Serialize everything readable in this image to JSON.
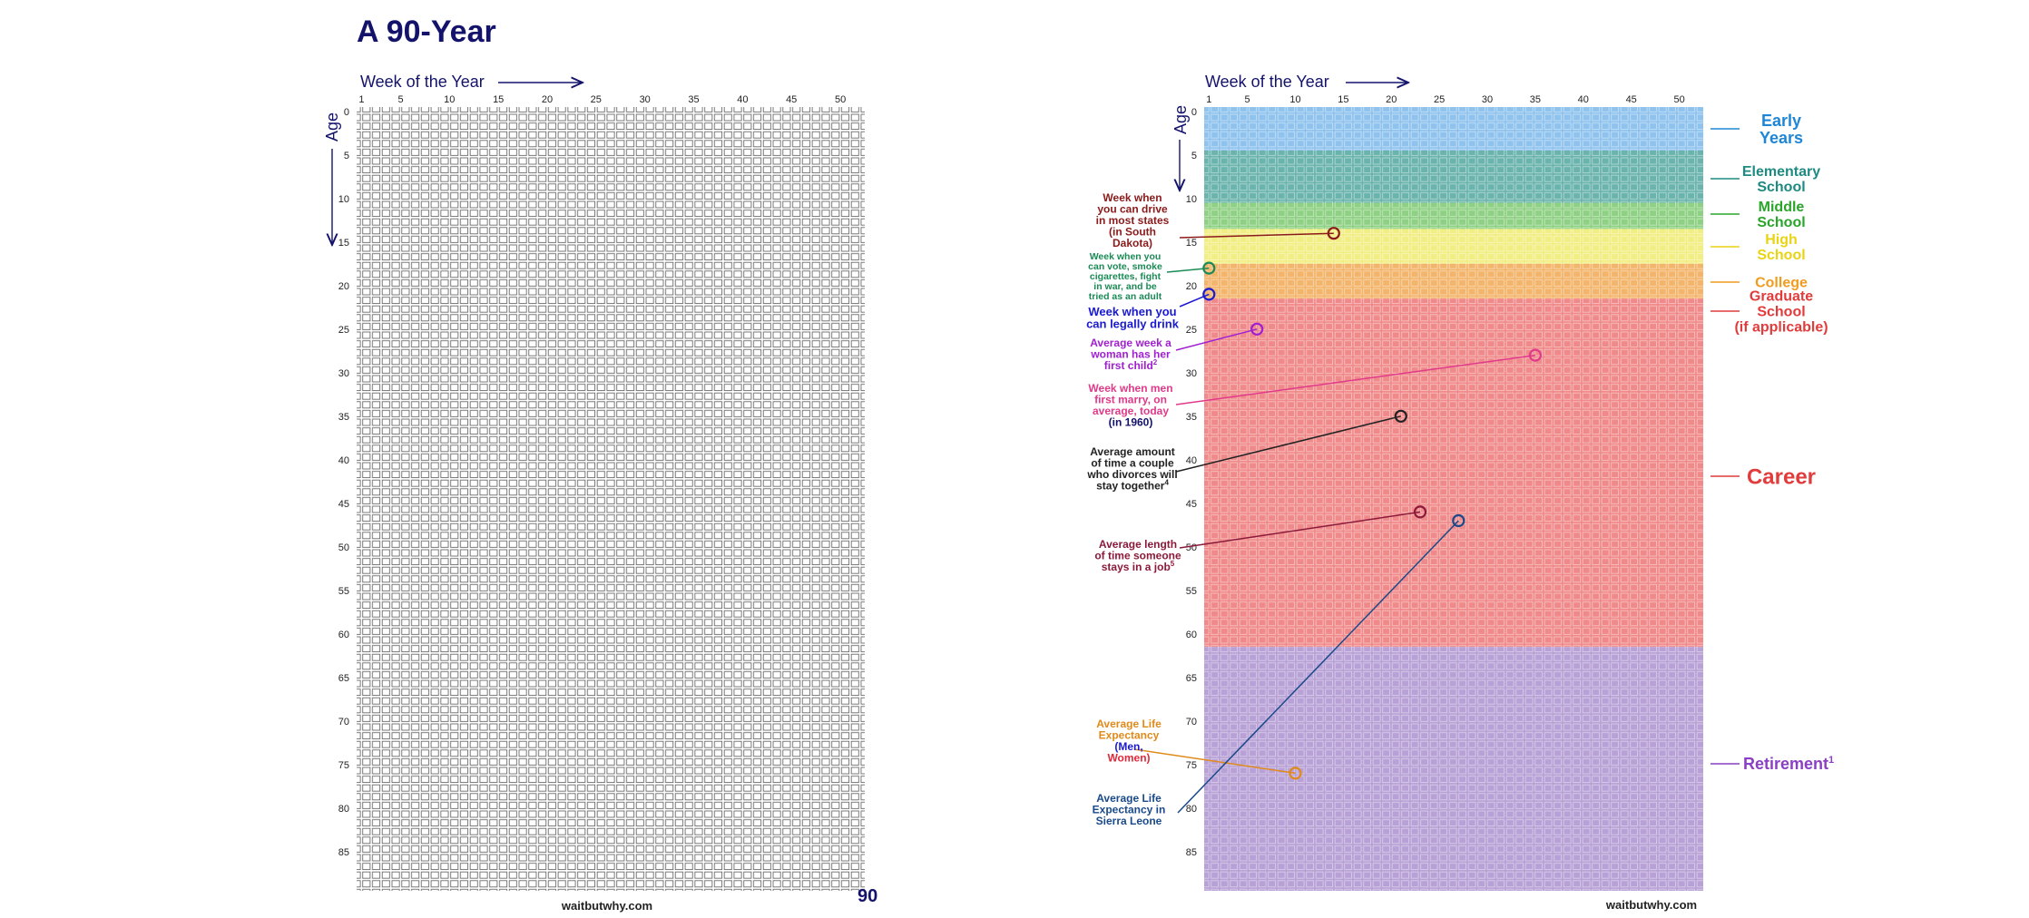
{
  "left_chart": {
    "title": "A 90-Year",
    "week_axis_label": "Week of the Year",
    "age_axis_label": "Age",
    "page_number": "90",
    "footer": "waitbutwhy.com"
  },
  "right_chart": {
    "week_axis_label": "Week of the Year",
    "age_axis_label": "Age",
    "footer": "waitbutwhy.com"
  },
  "axes": {
    "week_ticks": [
      "1",
      "5",
      "10",
      "15",
      "20",
      "25",
      "30",
      "35",
      "40",
      "45",
      "50"
    ],
    "age_ticks": [
      "0",
      "5",
      "10",
      "15",
      "20",
      "25",
      "30",
      "35",
      "40",
      "45",
      "50",
      "55",
      "60",
      "65",
      "70",
      "75",
      "80",
      "85"
    ],
    "weeks": 52,
    "years": 90
  },
  "life_stages": [
    {
      "id": "early",
      "label": [
        "Early",
        "Years"
      ],
      "from": 0,
      "to": 5,
      "color": "#1f86d6",
      "fill": "#8fc3ee"
    },
    {
      "id": "elementary",
      "label": [
        "Elementary",
        "School"
      ],
      "from": 5,
      "to": 11,
      "color": "#1e8a82",
      "fill": "#6bb4ad"
    },
    {
      "id": "middle",
      "label": [
        "Middle",
        "School"
      ],
      "from": 11,
      "to": 14,
      "color": "#2aa52a",
      "fill": "#8fd184"
    },
    {
      "id": "high",
      "label": [
        "High",
        "School"
      ],
      "from": 14,
      "to": 18,
      "color": "#e9d414",
      "fill": "#f1ee83"
    },
    {
      "id": "college",
      "label": [
        "College"
      ],
      "from": 18,
      "to": 22,
      "color": "#ef9c1f",
      "fill": "#f3b56b"
    },
    {
      "id": "graduate",
      "label": [
        "Graduate",
        "School",
        "(if applicable)"
      ],
      "from": 22,
      "to": 24,
      "color": "#e23b3b",
      "fill": "#f08a8a"
    },
    {
      "id": "career",
      "label": [
        "Career"
      ],
      "from": 24,
      "to": 62,
      "color": "#e23b3b",
      "fill": "#f08a8a"
    },
    {
      "id": "retirement",
      "label": [
        "Retirement",
        "1"
      ],
      "from": 62,
      "to": 90,
      "color": "#8a3fc4",
      "fill": "#b8a1d6"
    }
  ],
  "annotations": [
    {
      "id": "drive",
      "lines": [
        "Week when",
        "you can drive",
        "in most states",
        "(in South",
        "Dakota)"
      ],
      "color": "#8b1a1a",
      "week": 14,
      "age": 14
    },
    {
      "id": "vote",
      "lines": [
        "Week when you",
        "can vote, smoke",
        "cigarettes, fight",
        "in war, and be",
        "tried as an adult"
      ],
      "color": "#1b8a55",
      "week": 1,
      "age": 18
    },
    {
      "id": "drink",
      "lines": [
        "Week when you",
        "can legally drink"
      ],
      "color": "#1a1ad1",
      "week": 1,
      "age": 21
    },
    {
      "id": "first-child",
      "lines": [
        "Average week a",
        "woman has her",
        "first child",
        "2"
      ],
      "color": "#a020d0",
      "week": 6,
      "age": 25
    },
    {
      "id": "marry",
      "lines": [
        "Week when men",
        "first marry, on",
        "average, today",
        "(in 1960)"
      ],
      "color": "#e03a8a",
      "week": 35,
      "age": 28
    },
    {
      "id": "divorce",
      "lines": [
        "Average amount",
        "of time a couple",
        "who divorces will",
        "stay together",
        "4"
      ],
      "color": "#222222",
      "week": 21,
      "age": 35
    },
    {
      "id": "job",
      "lines": [
        "Average length",
        "of time someone",
        "stays in a job",
        "5"
      ],
      "color": "#8b1a3a",
      "week": 23,
      "age": 46
    },
    {
      "id": "life-expectancy",
      "lines": [
        "Average Life",
        "Expectancy",
        "(Men,",
        "Women)"
      ],
      "color": "#e08a1a",
      "week": 10,
      "age": 76
    },
    {
      "id": "sierra-leone",
      "lines": [
        "Average Life",
        "Expectancy in",
        "Sierra Leone"
      ],
      "color": "#1a4a8a",
      "week": 27,
      "age": 47
    }
  ]
}
